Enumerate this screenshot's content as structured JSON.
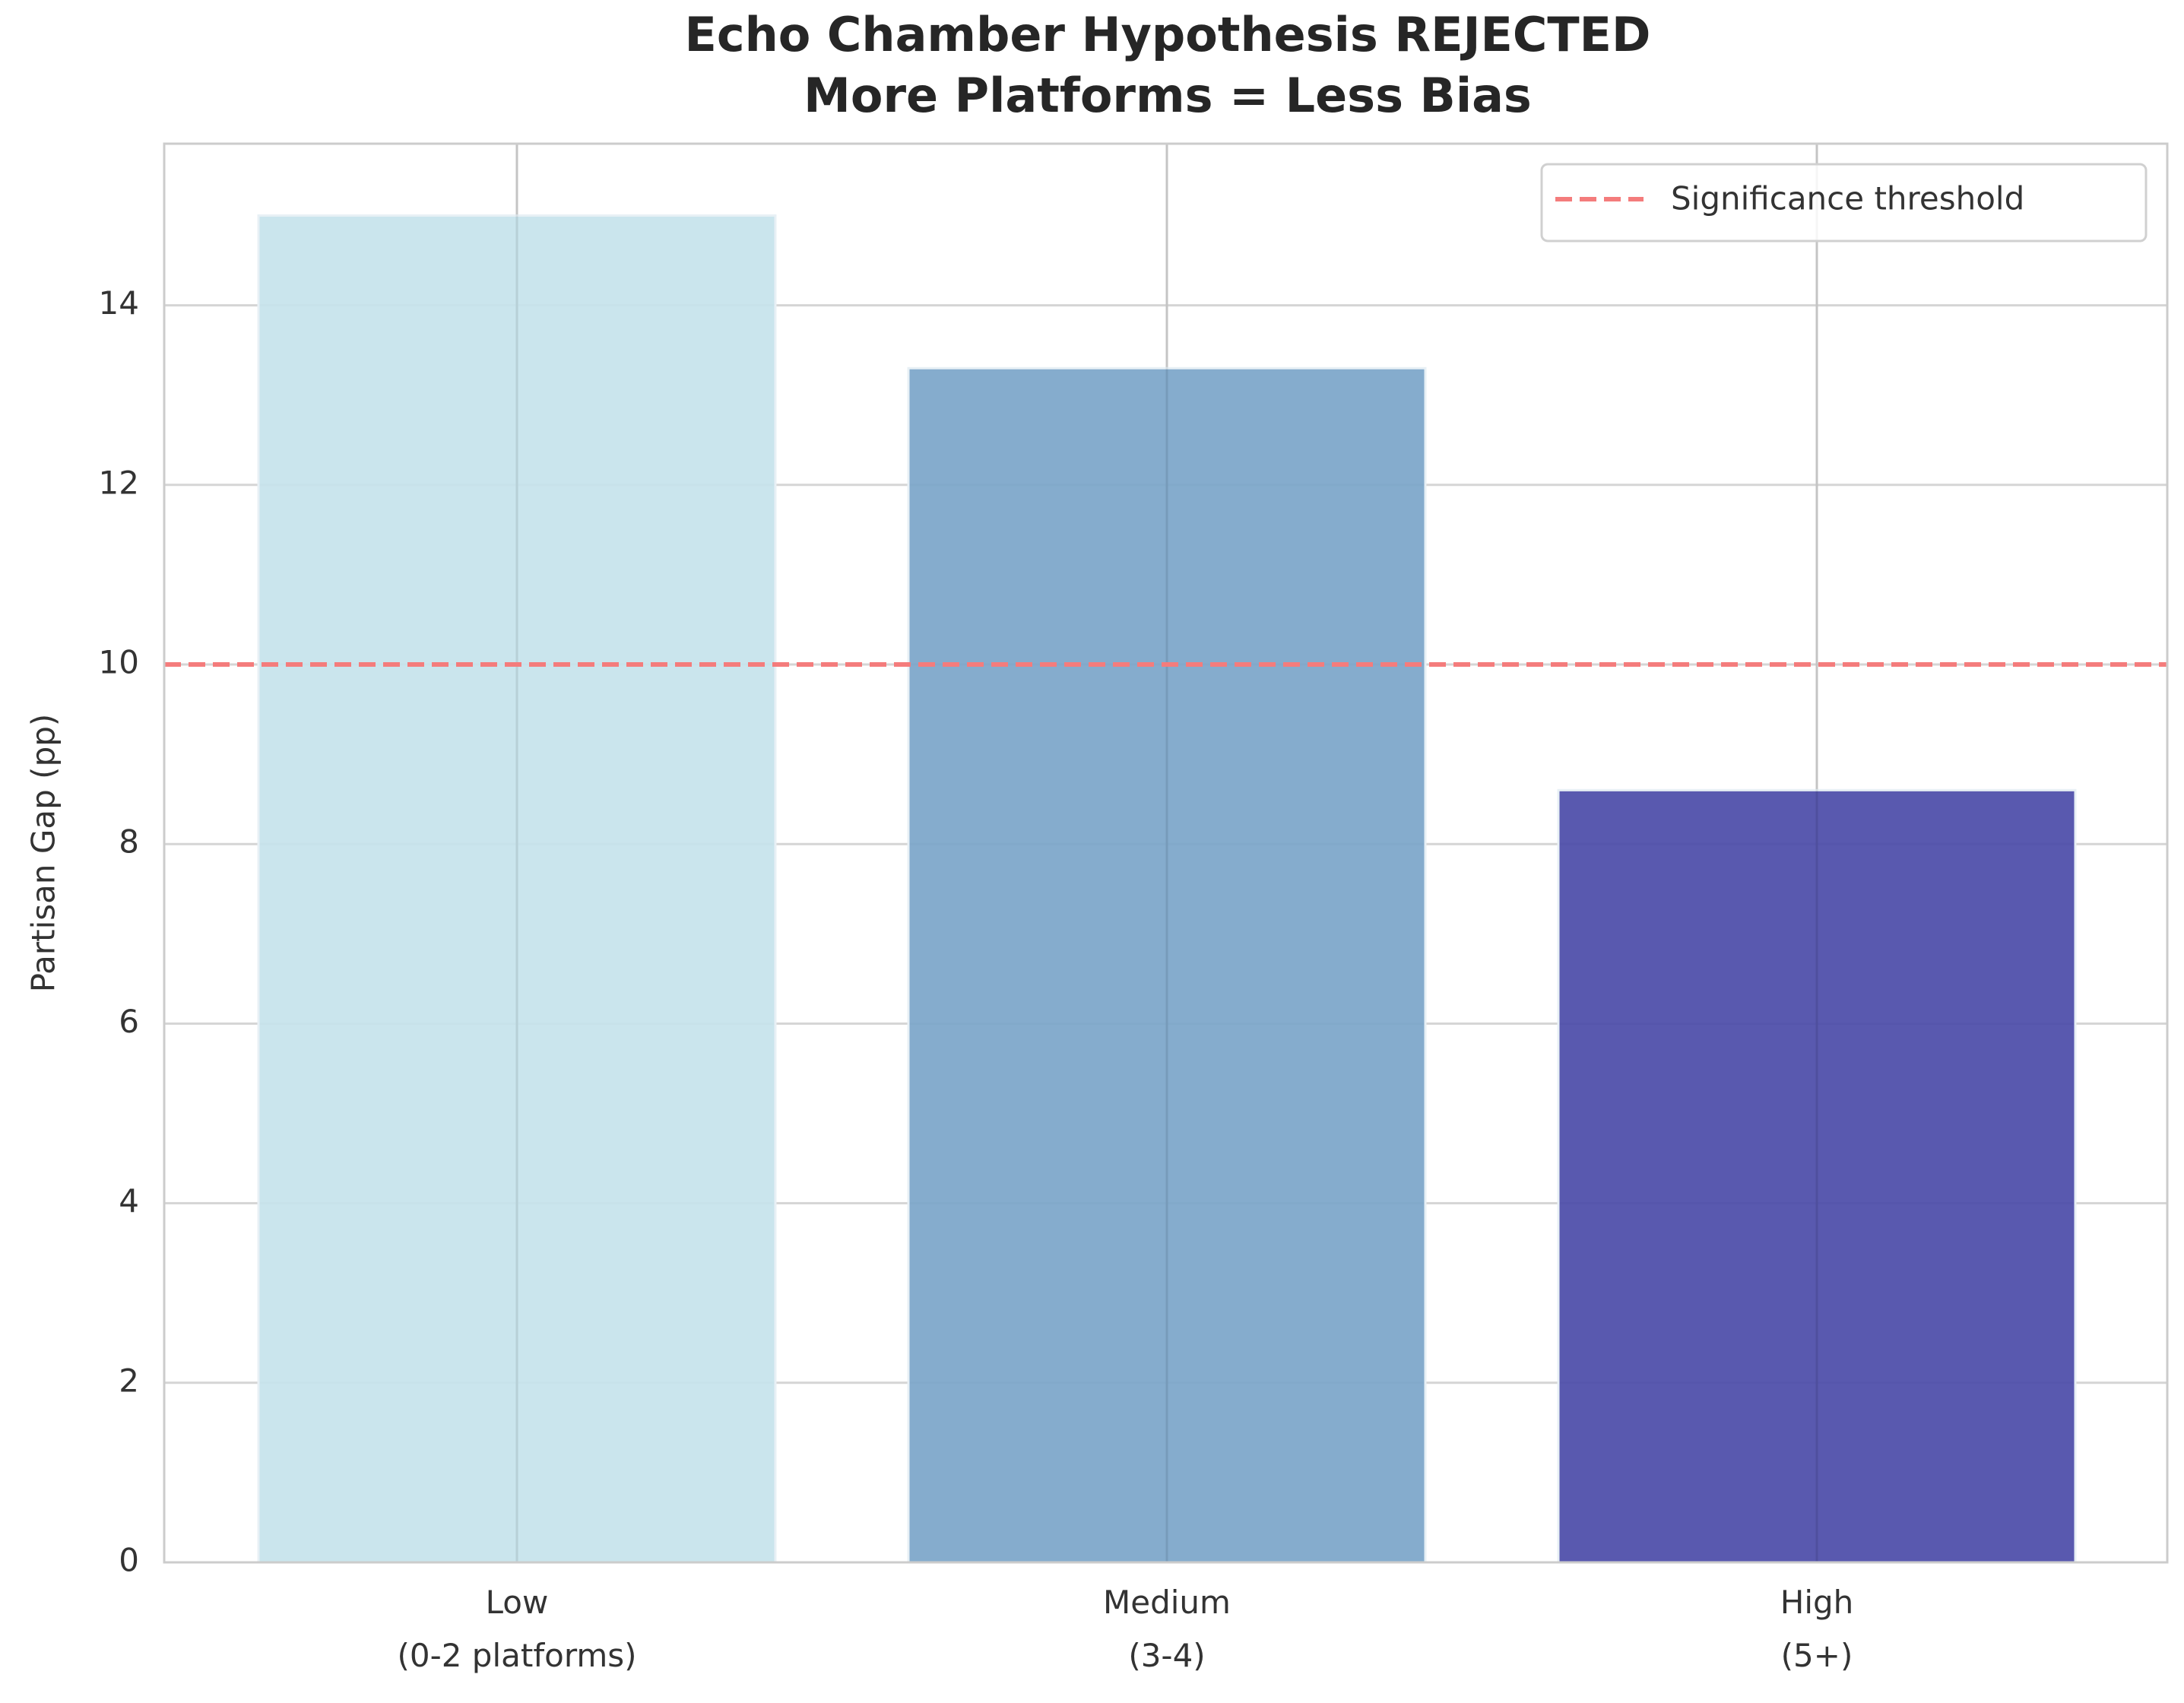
{
  "chart_data": {
    "type": "bar",
    "title": [
      "Echo Chamber Hypothesis REJECTED",
      "More Platforms = Less Bias"
    ],
    "y_label": "Partisan Gap (pp)",
    "categories": [
      "Low\n(0-2 platforms)",
      "Medium\n(3-4)",
      "High\n(5+)"
    ],
    "values": [
      15.0,
      13.3,
      8.6
    ],
    "colors": [
      "#c5e3ec",
      "#7ba5c9",
      "#4b4ba8"
    ],
    "ylim": [
      0,
      15.8
    ],
    "yticks": [
      0,
      2,
      4,
      6,
      8,
      10,
      12,
      14
    ],
    "grid": true,
    "threshold": {
      "value": 10,
      "label": "Significance threshold",
      "color": "#f47c7c"
    },
    "legend": "upper right"
  }
}
